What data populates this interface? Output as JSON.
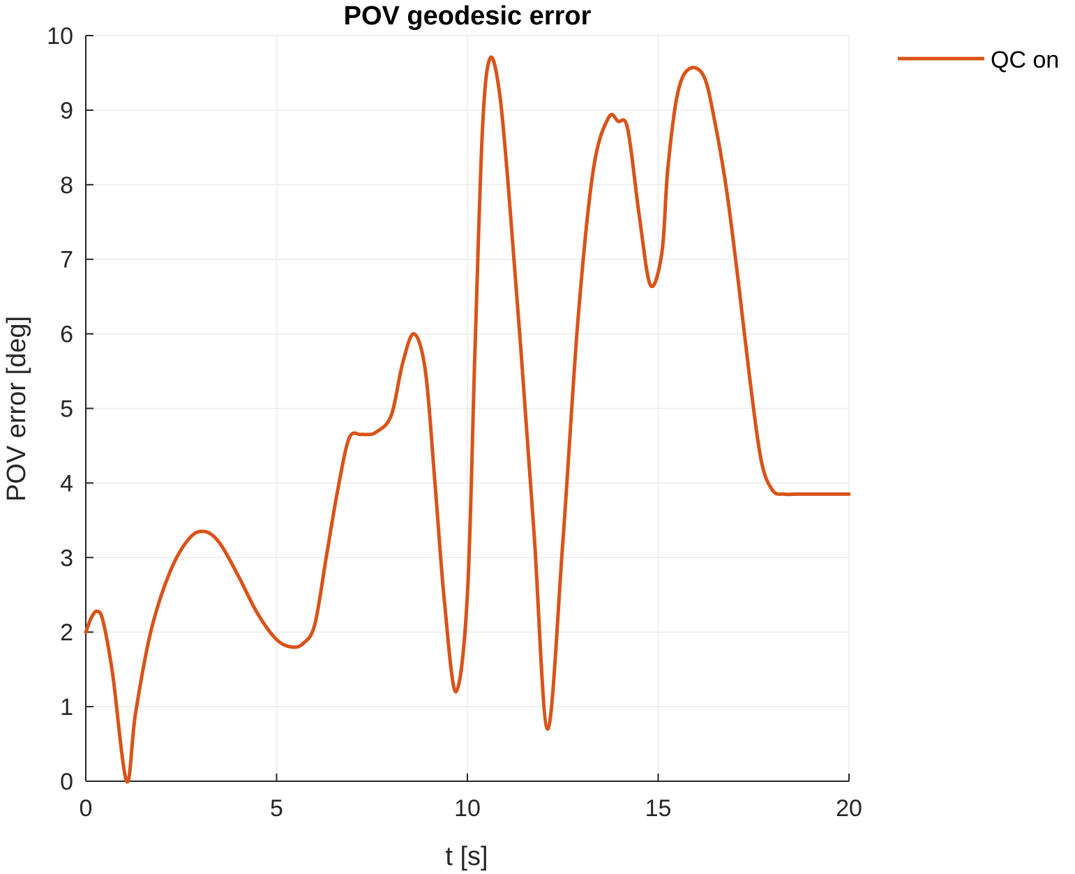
{
  "chart_data": {
    "type": "line",
    "title": "POV geodesic error",
    "xlabel": "t [s]",
    "ylabel": "POV error [deg]",
    "xlim": [
      0,
      20
    ],
    "ylim": [
      0,
      10
    ],
    "xticks": [
      0,
      5,
      10,
      15,
      20
    ],
    "yticks": [
      0,
      1,
      2,
      3,
      4,
      5,
      6,
      7,
      8,
      9,
      10
    ],
    "xtick_labels": [
      "0",
      "5",
      "10",
      "15",
      "20"
    ],
    "ytick_labels": [
      "0",
      "1",
      "2",
      "3",
      "4",
      "5",
      "6",
      "7",
      "8",
      "9",
      "10"
    ],
    "grid": true,
    "legend_position": "top-right outside",
    "series": [
      {
        "name": "QC on",
        "color": "#D95319",
        "x": [
          0,
          0.15,
          0.3,
          0.45,
          0.7,
          1.07,
          1.3,
          1.7,
          2.2,
          2.7,
          3.1,
          3.5,
          4.0,
          4.5,
          5.0,
          5.4,
          5.7,
          6.0,
          6.3,
          6.6,
          6.9,
          7.2,
          7.35,
          7.6,
          8.0,
          8.3,
          8.6,
          8.9,
          9.15,
          9.4,
          9.7,
          10.0,
          10.2,
          10.4,
          10.6,
          10.85,
          11.1,
          11.4,
          11.75,
          12.1,
          12.5,
          12.9,
          13.3,
          13.7,
          13.95,
          14.2,
          14.5,
          14.8,
          15.1,
          15.25,
          15.5,
          15.8,
          16.2,
          16.5,
          16.8,
          17.1,
          17.4,
          17.7,
          18.0,
          18.3,
          18.6,
          18.9,
          19.2,
          19.5,
          19.8,
          20.0
        ],
        "y": [
          2.0,
          2.2,
          2.28,
          2.15,
          1.45,
          0.0,
          0.9,
          2.0,
          2.8,
          3.25,
          3.35,
          3.2,
          2.75,
          2.25,
          1.9,
          1.8,
          1.85,
          2.1,
          3.0,
          3.9,
          4.6,
          4.65,
          4.65,
          4.68,
          4.9,
          5.6,
          6.0,
          5.5,
          4.0,
          2.4,
          1.2,
          2.5,
          5.8,
          8.8,
          9.7,
          9.2,
          7.8,
          5.8,
          3.3,
          0.7,
          3.2,
          6.2,
          8.2,
          8.9,
          8.85,
          8.75,
          7.6,
          6.65,
          7.1,
          8.2,
          9.2,
          9.55,
          9.45,
          8.8,
          7.9,
          6.7,
          5.4,
          4.3,
          3.9,
          3.85,
          3.85,
          3.85,
          3.85,
          3.85,
          3.85,
          3.85
        ]
      }
    ]
  }
}
